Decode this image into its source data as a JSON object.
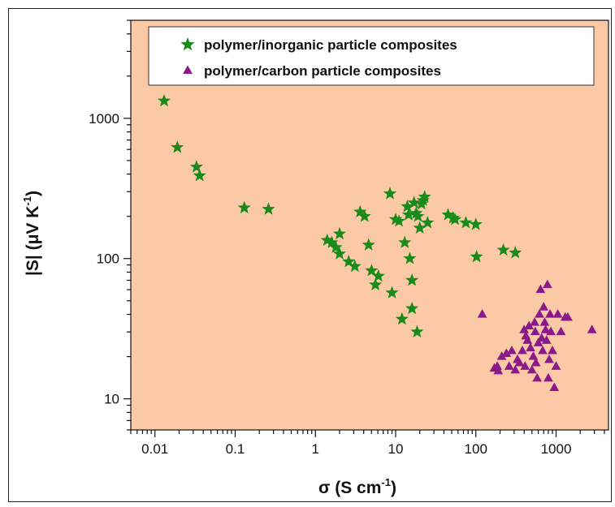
{
  "chart_data": {
    "type": "scatter",
    "xscale": "log",
    "yscale": "log",
    "xlim": [
      0.005,
      4500
    ],
    "ylim": [
      6,
      5000
    ],
    "xlabel": {
      "base": "σ (S cm",
      "sup": "-1",
      "end": ")"
    },
    "ylabel": {
      "base": "|S| (μV K",
      "sup": "-1",
      "end": ")"
    },
    "x_ticks": [
      {
        "value": 0.01,
        "label": "0.01"
      },
      {
        "value": 0.1,
        "label": "0.1"
      },
      {
        "value": 1,
        "label": "1"
      },
      {
        "value": 10,
        "label": "10"
      },
      {
        "value": 100,
        "label": "100"
      },
      {
        "value": 1000,
        "label": "1000"
      }
    ],
    "y_ticks": [
      {
        "value": 10,
        "label": "10"
      },
      {
        "value": 100,
        "label": "100"
      },
      {
        "value": 1000,
        "label": "1000"
      }
    ],
    "legend": {
      "position": "top-right"
    },
    "colors": {
      "plot_bg": "#fcc9a7",
      "inorganic": "#1a8a1a",
      "carbon": "#8a1a8a"
    },
    "series": [
      {
        "name": "polymer/inorganic particle composites",
        "marker": "star",
        "points": [
          [
            0.013,
            1330
          ],
          [
            0.019,
            620
          ],
          [
            0.033,
            450
          ],
          [
            0.036,
            390
          ],
          [
            0.13,
            230
          ],
          [
            0.26,
            225
          ],
          [
            1.4,
            135
          ],
          [
            1.6,
            130
          ],
          [
            1.8,
            120
          ],
          [
            2.0,
            150
          ],
          [
            2.0,
            108
          ],
          [
            2.6,
            95
          ],
          [
            3.1,
            88
          ],
          [
            3.6,
            215
          ],
          [
            4.1,
            200
          ],
          [
            4.6,
            125
          ],
          [
            5.0,
            82
          ],
          [
            5.6,
            65
          ],
          [
            6.1,
            75
          ],
          [
            8.5,
            290
          ],
          [
            9.0,
            57
          ],
          [
            10.0,
            190
          ],
          [
            11.0,
            185
          ],
          [
            12.0,
            37
          ],
          [
            13.0,
            130
          ],
          [
            14.0,
            235
          ],
          [
            14.5,
            205
          ],
          [
            15.0,
            100
          ],
          [
            16.0,
            70
          ],
          [
            16.0,
            44
          ],
          [
            17.0,
            250
          ],
          [
            18.0,
            210
          ],
          [
            18.5,
            30
          ],
          [
            19.0,
            200
          ],
          [
            20.0,
            165
          ],
          [
            21.0,
            245
          ],
          [
            22.0,
            260
          ],
          [
            23.0,
            275
          ],
          [
            25.0,
            180
          ],
          [
            45.0,
            205
          ],
          [
            52.0,
            195
          ],
          [
            55.0,
            190
          ],
          [
            75.0,
            180
          ],
          [
            100.0,
            175
          ],
          [
            102.0,
            103
          ],
          [
            220.0,
            115
          ],
          [
            310.0,
            110
          ]
        ]
      },
      {
        "name": "polymer/carbon particle composites",
        "marker": "triangle",
        "points": [
          [
            120,
            40
          ],
          [
            170,
            16.5
          ],
          [
            185,
            17
          ],
          [
            190,
            15.8
          ],
          [
            210,
            20
          ],
          [
            240,
            21
          ],
          [
            260,
            17
          ],
          [
            280,
            22
          ],
          [
            310,
            16
          ],
          [
            330,
            19
          ],
          [
            350,
            18
          ],
          [
            380,
            22
          ],
          [
            400,
            31
          ],
          [
            410,
            17
          ],
          [
            420,
            28
          ],
          [
            440,
            26
          ],
          [
            460,
            33
          ],
          [
            480,
            23
          ],
          [
            500,
            16
          ],
          [
            520,
            20
          ],
          [
            540,
            35
          ],
          [
            550,
            30
          ],
          [
            560,
            18
          ],
          [
            580,
            14
          ],
          [
            600,
            25
          ],
          [
            620,
            40
          ],
          [
            640,
            60
          ],
          [
            660,
            27
          ],
          [
            680,
            22
          ],
          [
            700,
            45
          ],
          [
            720,
            35
          ],
          [
            740,
            31
          ],
          [
            760,
            26
          ],
          [
            780,
            65
          ],
          [
            800,
            14
          ],
          [
            820,
            19
          ],
          [
            840,
            40
          ],
          [
            860,
            30
          ],
          [
            900,
            22
          ],
          [
            950,
            12
          ],
          [
            1000,
            17
          ],
          [
            1050,
            40
          ],
          [
            1150,
            30
          ],
          [
            1300,
            38
          ],
          [
            1400,
            38
          ],
          [
            2800,
            31
          ]
        ]
      }
    ]
  }
}
